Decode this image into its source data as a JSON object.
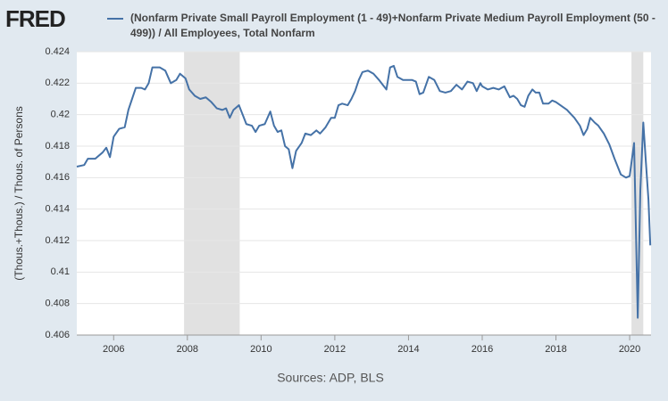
{
  "logo": "FRED",
  "chart_data": {
    "type": "line",
    "series": [
      {
        "name": "(Nonfarm Private Small Payroll Employment (1 - 49)+Nonfarm Private Medium Payroll Employment (50 - 499)) / All Employees, Total Nonfarm",
        "color": "#4572a7",
        "values": [
          0.4167,
          0.4168,
          0.4172,
          0.4172,
          0.4176,
          0.4179,
          0.4173,
          0.4186,
          0.4191,
          0.4192,
          0.4203,
          0.421,
          0.4217,
          0.4217,
          0.4216,
          0.422,
          0.423,
          0.423,
          0.4228,
          0.422,
          0.4222,
          0.4226,
          0.4223,
          0.4216,
          0.4212,
          0.421,
          0.4211,
          0.4208,
          0.4204,
          0.4203,
          0.4204,
          0.4198,
          0.4203,
          0.4206,
          0.42,
          0.4194,
          0.4193,
          0.4189,
          0.4193,
          0.4194,
          0.4202,
          0.4193,
          0.4189,
          0.419,
          0.418,
          0.4178,
          0.4166,
          0.4177,
          0.4182,
          0.4188,
          0.4187,
          0.419,
          0.4188,
          0.4192,
          0.4198,
          0.4198,
          0.4206,
          0.4207,
          0.4206,
          0.421,
          0.4215,
          0.4222,
          0.4227,
          0.4228,
          0.4226,
          0.4222,
          0.4219,
          0.4216,
          0.423,
          0.4231,
          0.4224,
          0.4222,
          0.4222,
          0.4222,
          0.4221,
          0.4213,
          0.4214,
          0.4224,
          0.4222,
          0.4215,
          0.4214,
          0.4215,
          0.4219,
          0.4216,
          0.4221,
          0.422,
          0.4215,
          0.422,
          0.4218,
          0.4216,
          0.4217,
          0.4216,
          0.4218,
          0.4211,
          0.4212,
          0.421,
          0.4206,
          0.4205,
          0.4212,
          0.4216,
          0.4214,
          0.4214,
          0.4207,
          0.4207,
          0.4209,
          0.4208,
          0.4203,
          0.4198,
          0.4193,
          0.4187,
          0.4191,
          0.4198,
          0.4195,
          0.4193,
          0.4188,
          0.4181,
          0.4172,
          0.4162,
          0.416,
          0.4161,
          0.4182,
          0.4071,
          0.4152,
          0.4195,
          0.417,
          0.4146,
          0.4117
        ]
      }
    ],
    "x": [
      2005.0,
      2005.2,
      2005.3,
      2005.5,
      2005.7,
      2005.8,
      2005.9,
      2006.0,
      2006.15,
      2006.3,
      2006.4,
      2006.5,
      2006.6,
      2006.75,
      2006.85,
      2006.95,
      2007.05,
      2007.25,
      2007.4,
      2007.55,
      2007.7,
      2007.8,
      2007.95,
      2008.05,
      2008.2,
      2008.35,
      2008.5,
      2008.65,
      2008.8,
      2008.95,
      2009.05,
      2009.15,
      2009.25,
      2009.4,
      2009.5,
      2009.6,
      2009.75,
      2009.85,
      2009.95,
      2010.1,
      2010.25,
      2010.35,
      2010.45,
      2010.55,
      2010.65,
      2010.75,
      2010.85,
      2010.95,
      2011.1,
      2011.2,
      2011.35,
      2011.5,
      2011.6,
      2011.75,
      2011.9,
      2012.0,
      2012.1,
      2012.2,
      2012.35,
      2012.45,
      2012.55,
      2012.65,
      2012.75,
      2012.9,
      2013.05,
      2013.2,
      2013.3,
      2013.4,
      2013.5,
      2013.6,
      2013.7,
      2013.85,
      2014.0,
      2014.1,
      2014.2,
      2014.3,
      2014.4,
      2014.55,
      2014.7,
      2014.85,
      2015.0,
      2015.15,
      2015.3,
      2015.45,
      2015.6,
      2015.75,
      2015.85,
      2015.95,
      2016.0,
      2016.15,
      2016.3,
      2016.45,
      2016.6,
      2016.75,
      2016.85,
      2016.95,
      2017.05,
      2017.15,
      2017.25,
      2017.36,
      2017.45,
      2017.55,
      2017.65,
      2017.8,
      2017.9,
      2018.0,
      2018.3,
      2018.5,
      2018.65,
      2018.75,
      2018.85,
      2018.93,
      2019.05,
      2019.15,
      2019.3,
      2019.45,
      2019.59,
      2019.76,
      2019.9,
      2020.0,
      2020.12,
      2020.22,
      2020.29,
      2020.37,
      2020.44,
      2020.51,
      2020.56
    ],
    "recessions": [
      [
        2007.91,
        2009.42
      ],
      [
        2020.05,
        2020.37
      ]
    ],
    "xlim": [
      2005.0,
      2020.58
    ],
    "xticks": [
      2006,
      2008,
      2010,
      2012,
      2014,
      2016,
      2018,
      2020
    ],
    "ylim": [
      0.406,
      0.424
    ],
    "yticks": [
      0.406,
      0.408,
      0.41,
      0.412,
      0.414,
      0.416,
      0.418,
      0.42,
      0.422,
      0.424
    ],
    "grid": true,
    "ylabel": "(Thous.+Thous.) / Thous. of Persons",
    "source": "Sources: ADP, BLS"
  }
}
